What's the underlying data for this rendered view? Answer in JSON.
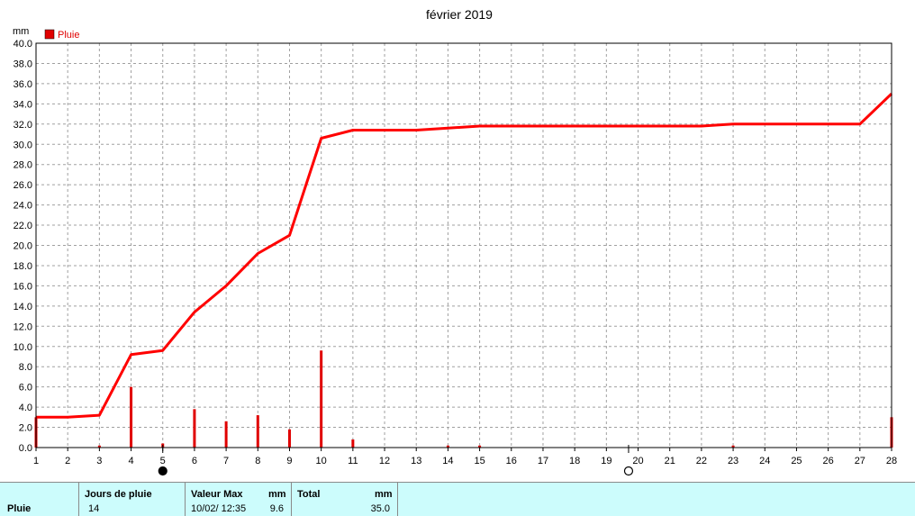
{
  "chart_data": {
    "type": "bar+line",
    "title": "février 2019",
    "ylabel": "mm",
    "ylim": [
      0,
      40
    ],
    "yticks": [
      "0.0",
      "2.0",
      "4.0",
      "6.0",
      "8.0",
      "10.0",
      "12.0",
      "14.0",
      "16.0",
      "18.0",
      "20.0",
      "22.0",
      "24.0",
      "26.0",
      "28.0",
      "30.0",
      "32.0",
      "34.0",
      "36.0",
      "38.0",
      "40.0"
    ],
    "xticks": [
      "1",
      "2",
      "3",
      "4",
      "5",
      "6",
      "7",
      "8",
      "9",
      "10",
      "11",
      "12",
      "13",
      "14",
      "15",
      "16",
      "17",
      "18",
      "19",
      "20",
      "21",
      "22",
      "23",
      "24",
      "25",
      "26",
      "27",
      "28"
    ],
    "xlim": [
      1,
      28
    ],
    "grid": true,
    "legend": {
      "position": "top-left",
      "label": "Pluie"
    },
    "series": [
      {
        "name": "Pluie",
        "kind": "bar",
        "color": "#e00000",
        "x": [
          1,
          3,
          4,
          5,
          6,
          7,
          8,
          9,
          10,
          11,
          14,
          15,
          23,
          28
        ],
        "values": [
          3.0,
          0.2,
          6.0,
          0.4,
          3.8,
          2.6,
          3.2,
          1.8,
          9.6,
          0.8,
          0.2,
          0.2,
          0.2,
          3.0
        ]
      },
      {
        "kind": "line",
        "color": "#ff0000",
        "x": [
          1,
          2,
          3,
          4,
          5,
          6,
          7,
          8,
          9,
          10,
          11,
          12,
          13,
          14,
          15,
          16,
          17,
          18,
          19,
          20,
          21,
          22,
          23,
          24,
          25,
          26,
          27,
          28
        ],
        "values": [
          3.0,
          3.0,
          3.2,
          9.2,
          9.6,
          13.4,
          16.0,
          19.2,
          21.0,
          30.6,
          31.4,
          31.4,
          31.4,
          31.6,
          31.8,
          31.8,
          31.8,
          31.8,
          31.8,
          31.8,
          31.8,
          31.8,
          32.0,
          32.0,
          32.0,
          32.0,
          32.0,
          35.0
        ]
      }
    ],
    "moon_phases": [
      {
        "x": 5,
        "phase": "new-moon-icon"
      },
      {
        "x": 19.7,
        "phase": "full-moon-icon"
      }
    ]
  },
  "summary": {
    "row_label": "Pluie",
    "days_header": "Jours de pluie",
    "days_value": "14",
    "max_header": "Valeur Max",
    "max_unit": "mm",
    "max_date": "10/02/  12:35",
    "max_value": "9.6",
    "total_header": "Total",
    "total_unit": "mm",
    "total_value": "35.0"
  }
}
